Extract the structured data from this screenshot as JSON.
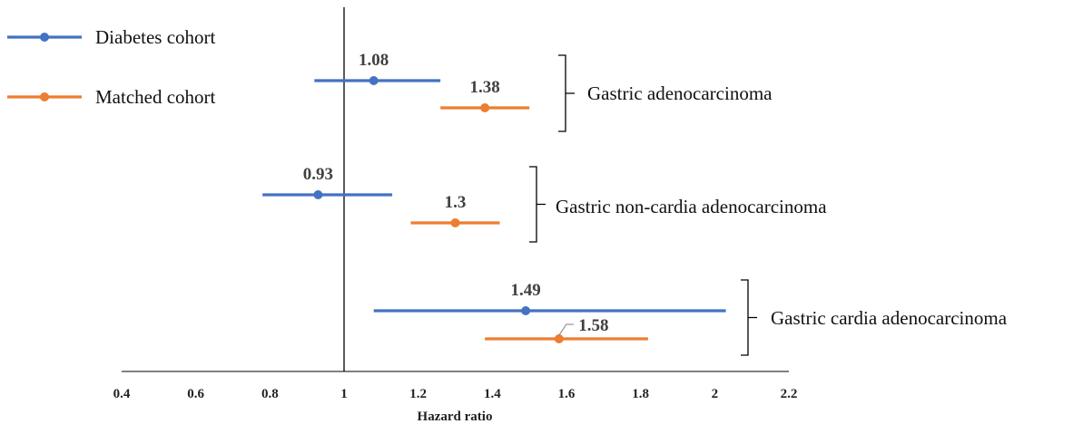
{
  "chart_data": {
    "type": "forest",
    "xlabel": "Hazard ratio",
    "xlim": [
      0.4,
      2.2
    ],
    "x_ticks": [
      "0.4",
      "0.6",
      "0.8",
      "1",
      "1.2",
      "1.4",
      "1.6",
      "1.8",
      "2",
      "2.2"
    ],
    "reference_line": 1,
    "grid": false,
    "legend_position": "top-left",
    "series": [
      {
        "name": "Diabetes cohort",
        "color": "#4472c4",
        "points": [
          {
            "group": "Gastric adenocarcinoma",
            "label": "1.08",
            "hr": 1.08,
            "lower": 0.92,
            "upper": 1.26
          },
          {
            "group": "Gastric non-cardia adenocarcinoma",
            "label": "0.93",
            "hr": 0.93,
            "lower": 0.78,
            "upper": 1.13
          },
          {
            "group": "Gastric cardia adenocarcinoma",
            "label": "1.49",
            "hr": 1.49,
            "lower": 1.08,
            "upper": 2.03
          }
        ]
      },
      {
        "name": "Matched cohort",
        "color": "#ed7d31",
        "points": [
          {
            "group": "Gastric adenocarcinoma",
            "label": "1.38",
            "hr": 1.38,
            "lower": 1.26,
            "upper": 1.5
          },
          {
            "group": "Gastric non-cardia adenocarcinoma",
            "label": "1.3",
            "hr": 1.3,
            "lower": 1.18,
            "upper": 1.42
          },
          {
            "group": "Gastric cardia adenocarcinoma",
            "label": "1.58",
            "hr": 1.58,
            "lower": 1.38,
            "upper": 1.82
          }
        ]
      }
    ],
    "groups": [
      "Gastric adenocarcinoma",
      "Gastric non-cardia adenocarcinoma",
      "Gastric cardia adenocarcinoma"
    ]
  }
}
